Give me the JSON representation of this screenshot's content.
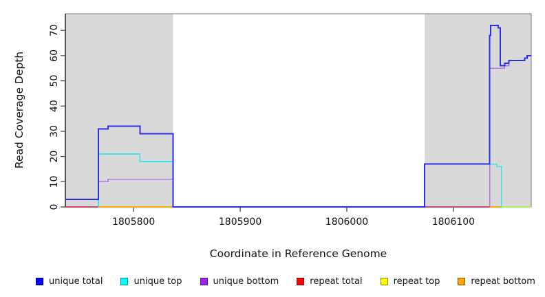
{
  "chart_data": {
    "type": "line",
    "title": "",
    "xlabel": "Coordinate in Reference Genome",
    "ylabel": "Read Coverage Depth",
    "x_range": [
      1805736,
      1806173
    ],
    "y_range": [
      0,
      76.6
    ],
    "x_ticks": [
      1805800,
      1805900,
      1806000,
      1806100
    ],
    "y_ticks": [
      0,
      10,
      20,
      30,
      40,
      50,
      60,
      70
    ],
    "grid": false,
    "legend_position": "bottom",
    "background_regions": [
      {
        "name": "left-shaded-region",
        "x0": 1805736,
        "x1": 1805837,
        "color": "#d9d9d9"
      },
      {
        "name": "right-shaded-region",
        "x0": 1806073,
        "x1": 1806173,
        "color": "#d9d9d9"
      }
    ],
    "series": [
      {
        "name": "repeat total",
        "color": "#d9486c",
        "width": 1.8,
        "opacity": 0.9,
        "points": [
          [
            1805736,
            0
          ],
          [
            1806134,
            0
          ]
        ]
      },
      {
        "name": "repeat bottom",
        "color": "#ffa500",
        "width": 2,
        "opacity": 1,
        "points": [
          [
            1805767,
            0
          ],
          [
            1805837,
            0
          ],
          null,
          [
            1806134,
            0
          ],
          [
            1806145,
            0
          ]
        ]
      },
      {
        "name": "unique bottom",
        "color": "#b16ee2",
        "width": 1.6,
        "opacity": 0.9,
        "points": [
          [
            1805767,
            0
          ],
          [
            1805767,
            10
          ],
          [
            1805776,
            10
          ],
          [
            1805776,
            11
          ],
          [
            1805837,
            11
          ],
          [
            1805837,
            0
          ],
          null,
          [
            1806134,
            0
          ],
          [
            1806134,
            55
          ],
          [
            1806148,
            55
          ],
          [
            1806148,
            56
          ],
          [
            1806152,
            56
          ],
          [
            1806152,
            58
          ],
          [
            1806167,
            58
          ],
          [
            1806167,
            59
          ],
          [
            1806169,
            59
          ],
          [
            1806169,
            60
          ],
          [
            1806173,
            60
          ]
        ]
      },
      {
        "name": "unique top",
        "color": "#3fe3e6",
        "width": 1.6,
        "opacity": 1,
        "points": [
          [
            1805767,
            0
          ],
          [
            1805767,
            21
          ],
          [
            1805806,
            21
          ],
          [
            1805806,
            18
          ],
          [
            1805837,
            18
          ],
          [
            1805837,
            0
          ],
          [
            1806073,
            0
          ],
          [
            1806073,
            17
          ],
          [
            1806141,
            17
          ],
          [
            1806141,
            16
          ],
          [
            1806145,
            16
          ],
          [
            1806145,
            0
          ],
          [
            1806173,
            0
          ]
        ]
      },
      {
        "name": "unique total",
        "color": "#2d2df2",
        "width": 2,
        "opacity": 1,
        "points": [
          [
            1805736,
            3
          ],
          [
            1805767,
            3
          ],
          [
            1805767,
            31
          ],
          [
            1805776,
            31
          ],
          [
            1805776,
            32
          ],
          [
            1805806,
            32
          ],
          [
            1805806,
            29
          ],
          [
            1805837,
            29
          ],
          [
            1805837,
            0
          ],
          [
            1806073,
            0
          ],
          [
            1806073,
            17
          ],
          [
            1806134,
            17
          ],
          [
            1806134,
            68
          ],
          [
            1806135,
            68
          ],
          [
            1806135,
            72
          ],
          [
            1806142,
            72
          ],
          [
            1806142,
            71
          ],
          [
            1806144,
            71
          ],
          [
            1806144,
            56
          ],
          [
            1806148,
            56
          ],
          [
            1806148,
            57
          ],
          [
            1806152,
            57
          ],
          [
            1806152,
            58
          ],
          [
            1806167,
            58
          ],
          [
            1806167,
            59
          ],
          [
            1806169,
            59
          ],
          [
            1806169,
            60
          ],
          [
            1806173,
            60
          ]
        ]
      },
      {
        "name": "repeat top",
        "color": "#ffff00",
        "width": 1.6,
        "opacity": 0.55,
        "points": [
          [
            1806145,
            0
          ],
          [
            1806173,
            0
          ]
        ]
      }
    ],
    "legend": {
      "items": [
        {
          "label": "unique total",
          "color": "#0000ff"
        },
        {
          "label": "unique top",
          "color": "#00ffff"
        },
        {
          "label": "unique bottom",
          "color": "#a020f0"
        },
        {
          "label": "repeat total",
          "color": "#ff0000"
        },
        {
          "label": "repeat top",
          "color": "#ffff00"
        },
        {
          "label": "repeat bottom",
          "color": "#ffa500"
        }
      ]
    }
  }
}
